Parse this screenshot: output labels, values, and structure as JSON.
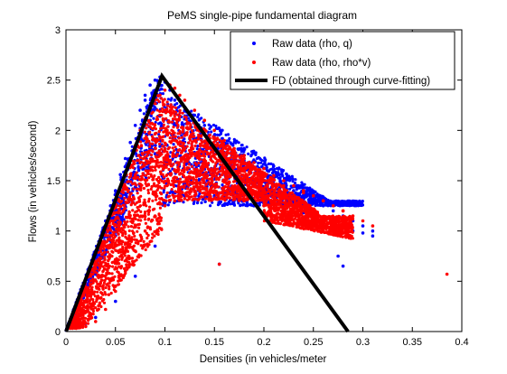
{
  "chart_data": {
    "type": "scatter",
    "title": "PeMS single-pipe fundamental diagram",
    "xlabel": "Densities (in vehicles/meter",
    "ylabel": "Flows (in vehicles/second)",
    "xlim": [
      0,
      0.4
    ],
    "ylim": [
      0,
      3
    ],
    "x_ticks": [
      0,
      0.05,
      0.1,
      0.15,
      0.2,
      0.25,
      0.3,
      0.35,
      0.4
    ],
    "x_tick_labels": [
      "0",
      "0.05",
      "0.1",
      "0.15",
      "0.2",
      "0.25",
      "0.3",
      "0.35",
      "0.4"
    ],
    "y_ticks": [
      0,
      0.5,
      1,
      1.5,
      2,
      2.5,
      3
    ],
    "y_tick_labels": [
      "0",
      "0.5",
      "1",
      "1.5",
      "2",
      "2.5",
      "3"
    ],
    "grid": false,
    "legend_position": "top-right",
    "series": [
      {
        "name": "Raw data (rho, q)",
        "kind": "scatter",
        "marker": "dot",
        "color": "#0000ff",
        "x": [
          0.005,
          0.01,
          0.015,
          0.02,
          0.025,
          0.03,
          0.035,
          0.04,
          0.045,
          0.05,
          0.055,
          0.06,
          0.065,
          0.07,
          0.075,
          0.08,
          0.085,
          0.09,
          0.095,
          0.1,
          0.105,
          0.11,
          0.12,
          0.13,
          0.14,
          0.15,
          0.16,
          0.17,
          0.18,
          0.19,
          0.2,
          0.21,
          0.22,
          0.23,
          0.24,
          0.25,
          0.26,
          0.27,
          0.28,
          0.29,
          0.3,
          0.31,
          0.02,
          0.03,
          0.05,
          0.07,
          0.09,
          0.1,
          0.12,
          0.14,
          0.16,
          0.18,
          0.2,
          0.22,
          0.24,
          0.26,
          0.28,
          0.3,
          0.08,
          0.09,
          0.095,
          0.1,
          0.11,
          0.13,
          0.15,
          0.17,
          0.19,
          0.21,
          0.23,
          0.25,
          0.27,
          0.29,
          0.31,
          0.155,
          0.275,
          0.28,
          0.085,
          0.075,
          0.065,
          0.06
        ],
        "y": [
          0.12,
          0.25,
          0.38,
          0.52,
          0.66,
          0.8,
          0.95,
          1.1,
          1.25,
          1.4,
          1.56,
          1.72,
          1.88,
          2.05,
          2.2,
          2.35,
          2.45,
          2.5,
          2.53,
          2.48,
          2.4,
          2.3,
          2.2,
          2.15,
          2.05,
          1.95,
          1.85,
          1.78,
          1.7,
          1.62,
          1.55,
          1.5,
          1.45,
          1.4,
          1.35,
          1.3,
          1.25,
          1.2,
          1.15,
          1.1,
          1.05,
          1.0,
          0.08,
          0.14,
          0.3,
          0.55,
          0.85,
          1.3,
          1.35,
          1.42,
          1.38,
          1.32,
          1.28,
          1.22,
          1.18,
          1.12,
          1.05,
          0.98,
          2.3,
          2.4,
          2.45,
          2.5,
          1.45,
          1.4,
          1.35,
          1.3,
          1.25,
          1.28,
          1.22,
          1.15,
          1.08,
          1.0,
          0.95,
          0.67,
          0.75,
          0.65,
          2.1,
          1.9,
          1.7,
          1.55
        ]
      },
      {
        "name": "Raw data (rho, rho*v)",
        "kind": "scatter",
        "marker": "dot",
        "color": "#ff0000",
        "x": [
          0.005,
          0.01,
          0.015,
          0.02,
          0.025,
          0.03,
          0.035,
          0.04,
          0.045,
          0.05,
          0.055,
          0.06,
          0.065,
          0.07,
          0.075,
          0.08,
          0.085,
          0.09,
          0.095,
          0.1,
          0.105,
          0.11,
          0.115,
          0.12,
          0.13,
          0.14,
          0.15,
          0.16,
          0.17,
          0.18,
          0.19,
          0.2,
          0.21,
          0.22,
          0.23,
          0.24,
          0.25,
          0.26,
          0.27,
          0.28,
          0.29,
          0.3,
          0.31,
          0.385,
          0.02,
          0.03,
          0.04,
          0.05,
          0.06,
          0.07,
          0.08,
          0.09,
          0.1,
          0.11,
          0.12,
          0.13,
          0.14,
          0.15,
          0.16,
          0.17,
          0.18,
          0.19,
          0.2,
          0.21,
          0.22,
          0.23,
          0.24,
          0.25,
          0.26,
          0.27,
          0.1,
          0.11,
          0.12,
          0.13,
          0.14,
          0.15,
          0.16,
          0.17,
          0.18,
          0.19,
          0.2,
          0.22,
          0.24,
          0.26,
          0.28,
          0.155
        ],
        "y": [
          0.1,
          0.2,
          0.3,
          0.42,
          0.55,
          0.68,
          0.82,
          0.96,
          1.1,
          1.25,
          1.4,
          1.55,
          1.7,
          1.85,
          2.0,
          2.12,
          2.22,
          2.3,
          2.35,
          2.4,
          2.45,
          2.42,
          2.35,
          2.3,
          2.2,
          2.1,
          2.0,
          1.9,
          1.82,
          1.75,
          1.68,
          1.62,
          1.55,
          1.5,
          1.45,
          1.4,
          1.35,
          1.3,
          1.25,
          1.2,
          1.15,
          1.1,
          1.05,
          0.57,
          0.05,
          0.1,
          0.22,
          0.4,
          0.6,
          0.8,
          1.0,
          1.15,
          1.25,
          1.3,
          1.32,
          1.35,
          1.38,
          1.4,
          1.36,
          1.32,
          1.3,
          1.28,
          1.25,
          1.22,
          1.2,
          1.18,
          1.12,
          1.08,
          1.05,
          1.0,
          1.8,
          1.9,
          1.95,
          1.9,
          1.85,
          1.8,
          1.72,
          1.65,
          1.6,
          1.55,
          1.5,
          1.45,
          1.38,
          1.3,
          1.2,
          0.67
        ]
      },
      {
        "name": "FD (obtained through curve-fitting)",
        "kind": "line",
        "color": "#000000",
        "x": [
          0,
          0.097,
          0.285
        ],
        "y": [
          0,
          2.54,
          0
        ]
      }
    ]
  }
}
